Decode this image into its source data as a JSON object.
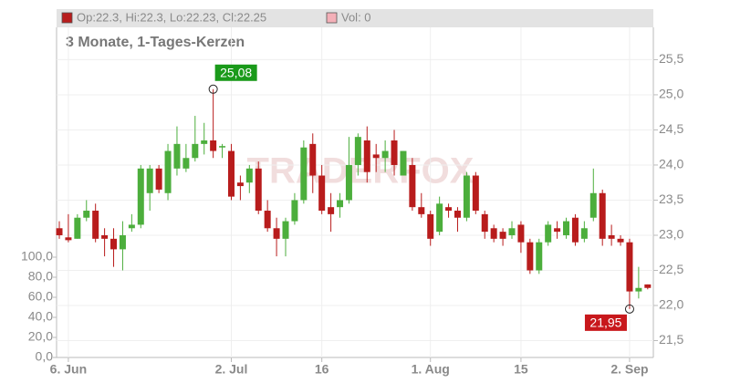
{
  "chart_data": {
    "type": "candlestick",
    "title": "3 Monate, 1-Tages-Kerzen",
    "info": {
      "ohlc": "Op:22.3, Hi:22.3, Lo:22.23, Cl:22.25",
      "volume": "Vol: 0"
    },
    "watermark": "TRADERFOX",
    "categories": [
      null,
      "6. Jun",
      null,
      null,
      null,
      null,
      null,
      null,
      null,
      null,
      null,
      null,
      null,
      null,
      null,
      null,
      null,
      null,
      null,
      "2. Jul",
      null,
      null,
      null,
      null,
      null,
      null,
      null,
      null,
      null,
      "16",
      null,
      null,
      null,
      null,
      null,
      null,
      null,
      null,
      null,
      null,
      null,
      "1. Aug",
      null,
      null,
      null,
      null,
      null,
      null,
      null,
      null,
      null,
      "15",
      null,
      null,
      null,
      null,
      null,
      null,
      null,
      null,
      null,
      null,
      null,
      "2. Sep",
      null,
      null
    ],
    "open": [
      23.1,
      22.97,
      22.95,
      23.25,
      23.35,
      23.0,
      22.95,
      22.8,
      23.1,
      23.15,
      23.6,
      23.95,
      23.6,
      23.95,
      23.95,
      24.1,
      24.3,
      24.35,
      24.25,
      24.2,
      23.75,
      23.75,
      23.95,
      23.35,
      23.1,
      22.95,
      23.2,
      23.5,
      24.3,
      23.85,
      23.4,
      23.4,
      23.5,
      24.0,
      24.35,
      24.15,
      24.1,
      24.35,
      23.85,
      24.0,
      23.4,
      23.3,
      23.05,
      23.4,
      23.35,
      23.25,
      23.85,
      23.3,
      23.1,
      23.05,
      23.0,
      23.15,
      22.9,
      22.5,
      22.9,
      23.1,
      23.0,
      23.25,
      22.95,
      23.25,
      23.6,
      23.0,
      22.95,
      22.9,
      22.2,
      22.3
    ],
    "high": [
      23.2,
      23.3,
      23.3,
      23.5,
      23.45,
      23.1,
      23.1,
      23.2,
      23.3,
      24.0,
      24.0,
      24.0,
      24.3,
      24.55,
      24.3,
      24.7,
      24.6,
      25.08,
      24.3,
      24.3,
      23.85,
      24.0,
      24.05,
      23.5,
      23.25,
      23.25,
      23.6,
      24.35,
      24.45,
      24.0,
      23.6,
      23.6,
      24.4,
      24.45,
      24.55,
      24.3,
      24.35,
      24.5,
      24.2,
      24.1,
      23.6,
      23.35,
      23.55,
      23.45,
      23.4,
      23.9,
      23.9,
      23.35,
      23.15,
      23.1,
      23.2,
      23.2,
      22.95,
      22.95,
      23.2,
      23.2,
      23.25,
      23.3,
      23.2,
      23.95,
      23.65,
      23.15,
      23.0,
      22.95,
      22.55,
      22.3
    ],
    "low": [
      22.95,
      22.9,
      22.95,
      23.2,
      22.9,
      22.7,
      22.55,
      22.5,
      23.05,
      23.1,
      23.35,
      23.6,
      23.5,
      23.85,
      23.9,
      24.05,
      24.15,
      24.1,
      24.1,
      23.5,
      23.5,
      23.6,
      23.3,
      23.05,
      22.7,
      22.7,
      23.15,
      23.45,
      23.6,
      23.3,
      23.05,
      23.25,
      23.45,
      23.85,
      23.75,
      23.9,
      23.9,
      23.85,
      23.85,
      23.35,
      23.25,
      22.85,
      23.0,
      23.25,
      23.05,
      23.2,
      23.3,
      22.95,
      22.9,
      22.85,
      22.95,
      22.75,
      22.45,
      22.45,
      22.85,
      22.95,
      22.95,
      22.85,
      22.9,
      23.2,
      22.85,
      22.85,
      22.85,
      21.95,
      22.1,
      22.23
    ],
    "close": [
      23.0,
      22.93,
      23.25,
      23.35,
      22.95,
      22.95,
      22.8,
      23.0,
      23.15,
      23.95,
      23.95,
      23.65,
      24.2,
      24.3,
      24.1,
      24.3,
      24.35,
      24.2,
      24.27,
      23.55,
      23.7,
      23.95,
      23.35,
      23.1,
      22.95,
      23.2,
      23.5,
      24.25,
      23.85,
      23.35,
      23.3,
      23.5,
      24.0,
      24.4,
      23.9,
      24.1,
      24.2,
      24.0,
      24.2,
      23.4,
      23.3,
      22.95,
      23.45,
      23.35,
      23.25,
      23.85,
      23.35,
      23.05,
      22.95,
      22.95,
      23.1,
      22.9,
      22.5,
      22.9,
      23.15,
      23.05,
      23.2,
      22.9,
      23.1,
      23.6,
      22.95,
      22.95,
      22.9,
      22.2,
      22.25,
      22.25
    ],
    "up_color": "#4cae3c",
    "down_color": "#b81c1c",
    "annotations": [
      {
        "value": 25.08,
        "label": "25,08",
        "color": "#1a9a1a"
      },
      {
        "value": 21.95,
        "label": "21,95",
        "color": "#c8181c"
      }
    ],
    "ylim": [
      21.26,
      25.96
    ],
    "yticks": [
      {
        "value": 21.5,
        "label": "21,5"
      },
      {
        "value": 22.0,
        "label": "22,0"
      },
      {
        "value": 22.5,
        "label": "22,5"
      },
      {
        "value": 23.0,
        "label": "23,0"
      },
      {
        "value": 23.5,
        "label": "23,5"
      },
      {
        "value": 24.0,
        "label": "24,0"
      },
      {
        "value": 24.5,
        "label": "24,5"
      },
      {
        "value": 25.0,
        "label": "25,0"
      },
      {
        "value": 25.5,
        "label": "25,5"
      }
    ],
    "y2lim": [
      0,
      100
    ],
    "y2ticks": [
      {
        "value": 0,
        "label": "0,0"
      },
      {
        "value": 20,
        "label": "20,0"
      },
      {
        "value": 40,
        "label": "40,0"
      },
      {
        "value": 60,
        "label": "60,0"
      },
      {
        "value": 80,
        "label": "80,0"
      },
      {
        "value": 100,
        "label": "100,0"
      }
    ],
    "grid": true
  }
}
